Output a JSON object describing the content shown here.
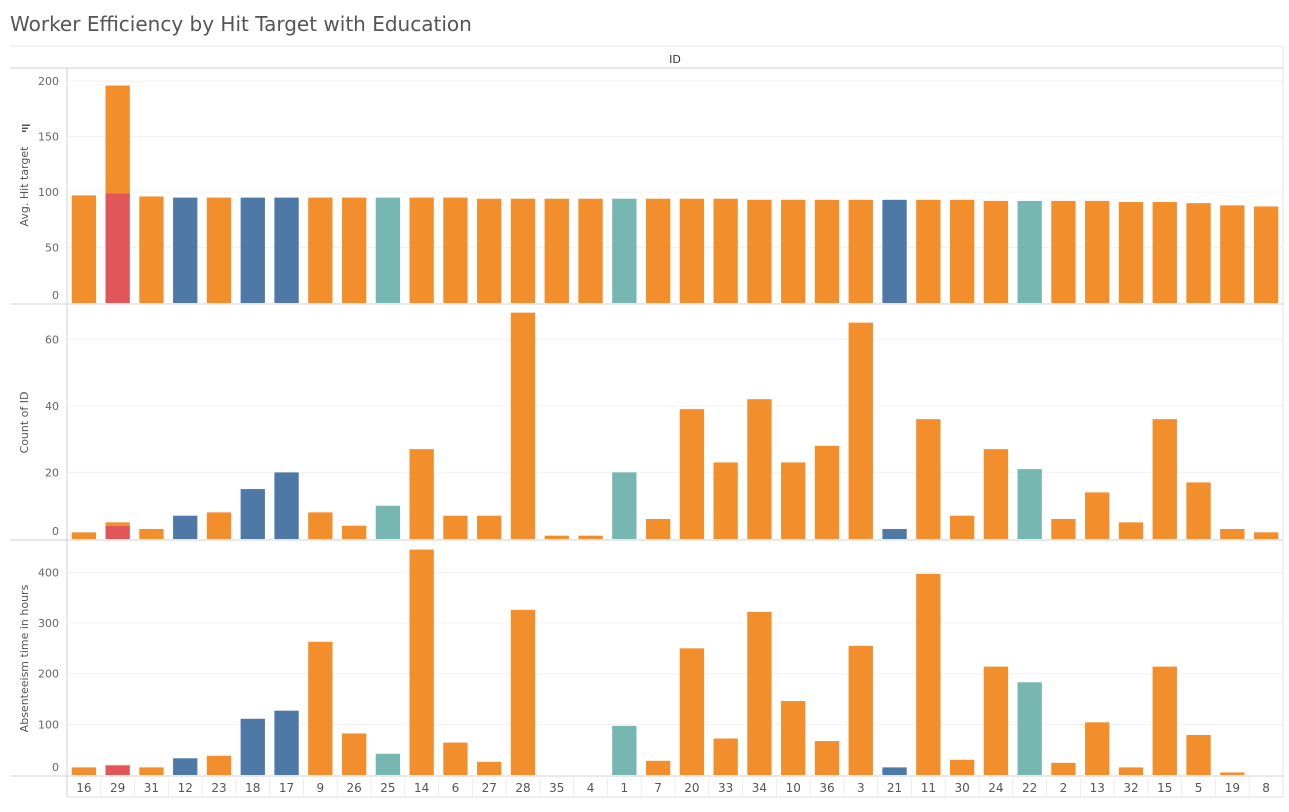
{
  "title": "Worker Efficiency by Hit Target with Education",
  "chart_data": {
    "type": "bar",
    "column_header": "ID",
    "categories": [
      "16",
      "29",
      "31",
      "12",
      "23",
      "18",
      "17",
      "9",
      "26",
      "25",
      "14",
      "6",
      "27",
      "28",
      "35",
      "4",
      "1",
      "7",
      "20",
      "33",
      "34",
      "10",
      "36",
      "3",
      "21",
      "11",
      "30",
      "24",
      "22",
      "2",
      "13",
      "32",
      "15",
      "5",
      "19",
      "8"
    ],
    "education_color_index": [
      0,
      1,
      0,
      2,
      0,
      2,
      2,
      0,
      0,
      3,
      0,
      0,
      0,
      0,
      0,
      0,
      3,
      0,
      0,
      0,
      0,
      0,
      0,
      0,
      2,
      0,
      0,
      0,
      3,
      0,
      0,
      0,
      0,
      0,
      0,
      0
    ],
    "colors": {
      "orange": "#f28e2b",
      "red": "#e15759",
      "blue": "#4e79a7",
      "teal": "#76b7b2"
    },
    "panels": [
      {
        "ylabel": "Avg. Hit target",
        "ylim": [
          0,
          210
        ],
        "ticks": [
          0,
          50,
          100,
          150,
          200
        ],
        "values": [
          97,
          196,
          96,
          95,
          95,
          95,
          95,
          95,
          95,
          95,
          95,
          95,
          94,
          94,
          94,
          94,
          94,
          94,
          94,
          94,
          93,
          93,
          93,
          93,
          93,
          93,
          93,
          92,
          92,
          92,
          92,
          91,
          91,
          90,
          88,
          87
        ],
        "stack_lower": [
          0,
          99,
          0,
          0,
          0,
          0,
          0,
          0,
          0,
          0,
          0,
          0,
          0,
          0,
          0,
          0,
          0,
          0,
          0,
          0,
          0,
          0,
          0,
          0,
          0,
          0,
          0,
          0,
          0,
          0,
          0,
          0,
          0,
          0,
          0,
          0
        ]
      },
      {
        "ylabel": "Count of ID",
        "ylim": [
          0,
          70
        ],
        "ticks": [
          0,
          20,
          40,
          60
        ],
        "values": [
          2,
          5,
          3,
          7,
          8,
          15,
          20,
          8,
          4,
          10,
          27,
          7,
          7,
          68,
          1,
          1,
          20,
          6,
          39,
          23,
          42,
          23,
          28,
          65,
          3,
          36,
          7,
          27,
          21,
          6,
          14,
          5,
          36,
          17,
          3,
          2
        ],
        "stack_lower": [
          0,
          4,
          0,
          0,
          0,
          0,
          0,
          0,
          0,
          0,
          0,
          0,
          0,
          0,
          0,
          0,
          0,
          0,
          0,
          0,
          0,
          0,
          0,
          0,
          0,
          0,
          0,
          0,
          0,
          0,
          0,
          0,
          0,
          0,
          0,
          0
        ]
      },
      {
        "ylabel": "Absenteeism time in hours",
        "ylim": [
          0,
          460
        ],
        "ticks": [
          0,
          100,
          200,
          300,
          400
        ],
        "values": [
          15,
          20,
          15,
          33,
          38,
          111,
          127,
          263,
          82,
          42,
          445,
          64,
          26,
          326,
          0,
          0,
          97,
          28,
          250,
          72,
          322,
          146,
          67,
          255,
          15,
          397,
          30,
          214,
          183,
          24,
          104,
          15,
          214,
          79,
          5,
          0
        ],
        "stack_lower": [
          0,
          18,
          0,
          0,
          0,
          0,
          0,
          0,
          0,
          0,
          0,
          0,
          0,
          0,
          0,
          0,
          0,
          0,
          0,
          0,
          0,
          0,
          0,
          0,
          0,
          0,
          0,
          0,
          0,
          0,
          0,
          0,
          0,
          0,
          0,
          0
        ]
      }
    ]
  }
}
